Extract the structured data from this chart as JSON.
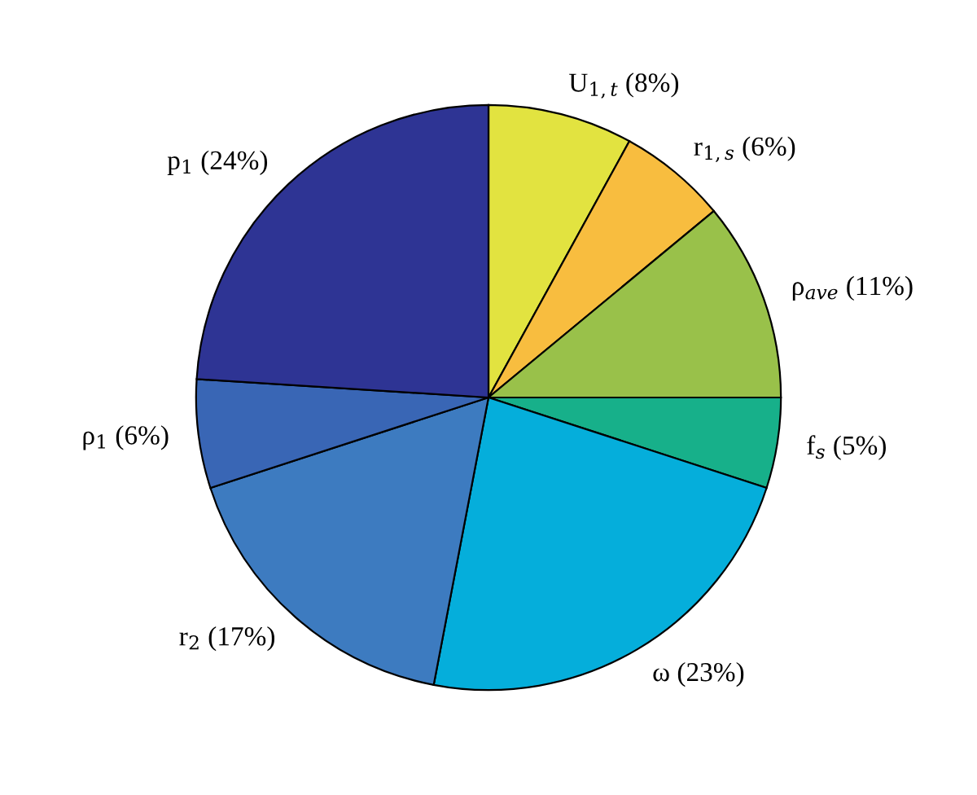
{
  "chart_data": {
    "type": "pie",
    "categories": [
      "U$_{1,t}$ (8%)",
      "r$_{1,s}$ (6%)",
      "ρ$_{ave}$ (11%)",
      "f$_{s}$ (5%)",
      "ω (23%)",
      "r$_{2}$ (17%)",
      "ρ$_{1}$ (6%)",
      "p$_{1}$ (24%)"
    ],
    "values": [
      8,
      6,
      11,
      5,
      23,
      17,
      6,
      24
    ],
    "colors": [
      "#e2e340",
      "#f8bd3f",
      "#99c14a",
      "#17b08a",
      "#05aedb",
      "#3d7bc0",
      "#3966b5",
      "#2e3494"
    ]
  }
}
